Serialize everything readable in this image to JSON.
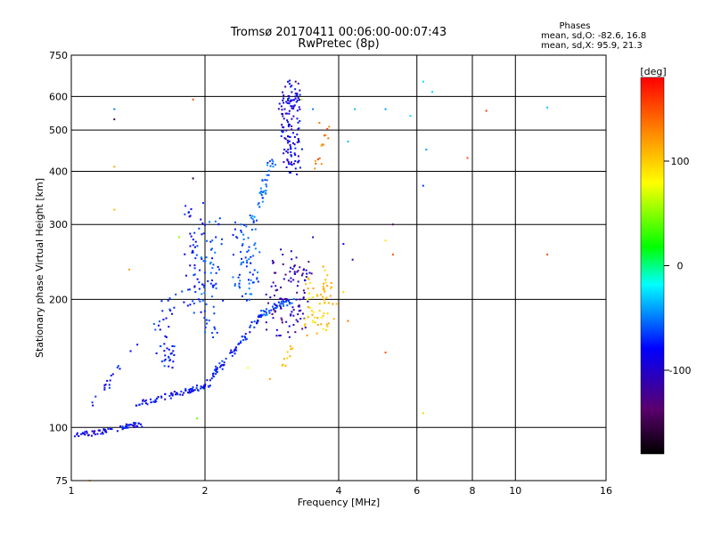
{
  "chart_data": {
    "type": "scatter",
    "title": "Tromsø 20170411 00:06:00-00:07:43",
    "subtitle": "RwPretec (8p)",
    "xlabel": "Frequency [MHz]",
    "ylabel": "Stationary phase Virtual Height [km]",
    "x_scale": "log2",
    "y_scale": "log",
    "xlim": [
      1,
      16
    ],
    "ylim": [
      75,
      750
    ],
    "x_ticks": [
      1,
      2,
      4,
      6,
      8,
      10,
      16
    ],
    "y_ticks": [
      75,
      100,
      200,
      300,
      400,
      500,
      600,
      750
    ],
    "grid": true,
    "colorbar": {
      "label": "[deg]",
      "range": [
        -180,
        180
      ],
      "ticks": [
        100,
        0,
        -100
      ]
    },
    "stats": {
      "heading": "Phases",
      "line_o": "mean, sd,O:  -82.6, 16.8",
      "line_x": "mean, sd,X:  95.9, 21.3"
    },
    "traces": [
      {
        "x0": 1.0,
        "x1": 1.3,
        "h0": 95,
        "h1": 100,
        "n": 40,
        "phase": -105,
        "spread": 0.03
      },
      {
        "x0": 1.3,
        "x1": 1.45,
        "h0": 100,
        "h1": 102,
        "n": 30,
        "phase": -100,
        "spread": 0.03
      },
      {
        "x0": 1.4,
        "x1": 2.0,
        "h0": 113,
        "h1": 125,
        "n": 70,
        "phase": -98,
        "spread": 0.03
      },
      {
        "x0": 2.0,
        "x1": 2.7,
        "h0": 125,
        "h1": 185,
        "n": 80,
        "phase": -90,
        "spread": 0.04
      },
      {
        "x0": 2.7,
        "x1": 3.15,
        "h0": 185,
        "h1": 200,
        "n": 40,
        "phase": -80,
        "spread": 0.04
      },
      {
        "x0": 1.1,
        "x1": 1.4,
        "h0": 112,
        "h1": 155,
        "n": 18,
        "phase": -95,
        "spread": 0.05
      },
      {
        "x0": 1.55,
        "x1": 1.7,
        "h0": 140,
        "h1": 200,
        "n": 45,
        "phase": -88,
        "spread": 0.08
      },
      {
        "x0": 1.82,
        "x1": 1.95,
        "h0": 190,
        "h1": 330,
        "n": 55,
        "phase": -92,
        "spread": 0.12
      },
      {
        "x0": 2.0,
        "x1": 2.15,
        "h0": 160,
        "h1": 300,
        "n": 60,
        "phase": -78,
        "spread": 0.12
      },
      {
        "x0": 2.35,
        "x1": 2.6,
        "h0": 200,
        "h1": 310,
        "n": 70,
        "phase": -75,
        "spread": 0.12
      },
      {
        "x0": 2.55,
        "x1": 2.85,
        "h0": 300,
        "h1": 430,
        "n": 40,
        "phase": -70,
        "spread": 0.05
      },
      {
        "x0": 3.0,
        "x1": 3.25,
        "h0": 400,
        "h1": 640,
        "n": 140,
        "phase": -108,
        "spread": 0.08
      },
      {
        "x0": 2.8,
        "x1": 3.4,
        "h0": 165,
        "h1": 250,
        "n": 110,
        "phase": -120,
        "spread": 0.1
      },
      {
        "x0": 3.4,
        "x1": 3.9,
        "h0": 170,
        "h1": 230,
        "n": 70,
        "phase": 105,
        "spread": 0.1
      },
      {
        "x0": 3.0,
        "x1": 3.15,
        "h0": 140,
        "h1": 155,
        "n": 12,
        "phase": 100,
        "spread": 0.03
      },
      {
        "x0": 3.55,
        "x1": 3.8,
        "h0": 410,
        "h1": 500,
        "n": 14,
        "phase": 140,
        "spread": 0.06
      }
    ],
    "points": [
      {
        "x": 1.25,
        "y": 560,
        "phase": -60
      },
      {
        "x": 1.25,
        "y": 530,
        "phase": -150
      },
      {
        "x": 1.25,
        "y": 410,
        "phase": 120
      },
      {
        "x": 1.25,
        "y": 325,
        "phase": 110
      },
      {
        "x": 1.35,
        "y": 235,
        "phase": 120
      },
      {
        "x": 1.88,
        "y": 590,
        "phase": 150
      },
      {
        "x": 1.88,
        "y": 385,
        "phase": -160
      },
      {
        "x": 1.75,
        "y": 280,
        "phase": 40
      },
      {
        "x": 1.92,
        "y": 105,
        "phase": 30
      },
      {
        "x": 3.2,
        "y": 650,
        "phase": -150
      },
      {
        "x": 3.3,
        "y": 590,
        "phase": 60
      },
      {
        "x": 3.5,
        "y": 560,
        "phase": -60
      },
      {
        "x": 3.62,
        "y": 520,
        "phase": 140
      },
      {
        "x": 4.2,
        "y": 470,
        "phase": -40
      },
      {
        "x": 4.35,
        "y": 560,
        "phase": -40
      },
      {
        "x": 5.1,
        "y": 560,
        "phase": -50
      },
      {
        "x": 5.8,
        "y": 540,
        "phase": -30
      },
      {
        "x": 6.2,
        "y": 650,
        "phase": -30
      },
      {
        "x": 6.3,
        "y": 450,
        "phase": -50
      },
      {
        "x": 6.2,
        "y": 370,
        "phase": -80
      },
      {
        "x": 6.5,
        "y": 615,
        "phase": -30
      },
      {
        "x": 7.8,
        "y": 430,
        "phase": 150
      },
      {
        "x": 8.6,
        "y": 555,
        "phase": 160
      },
      {
        "x": 11.8,
        "y": 565,
        "phase": -40
      },
      {
        "x": 11.8,
        "y": 255,
        "phase": 150
      },
      {
        "x": 5.3,
        "y": 300,
        "phase": -140
      },
      {
        "x": 4.1,
        "y": 270,
        "phase": -110
      },
      {
        "x": 4.3,
        "y": 248,
        "phase": -120
      },
      {
        "x": 5.1,
        "y": 275,
        "phase": 90
      },
      {
        "x": 5.3,
        "y": 255,
        "phase": 150
      },
      {
        "x": 5.1,
        "y": 150,
        "phase": 150
      },
      {
        "x": 6.2,
        "y": 108,
        "phase": 100
      },
      {
        "x": 4.2,
        "y": 178,
        "phase": 140
      },
      {
        "x": 4.1,
        "y": 208,
        "phase": 100
      },
      {
        "x": 3.5,
        "y": 280,
        "phase": -120
      },
      {
        "x": 2.8,
        "y": 130,
        "phase": 120
      },
      {
        "x": 1.1,
        "y": 75,
        "phase": 110
      },
      {
        "x": 2.2,
        "y": 140,
        "phase": -120
      },
      {
        "x": 2.5,
        "y": 138,
        "phase": 80
      }
    ]
  }
}
